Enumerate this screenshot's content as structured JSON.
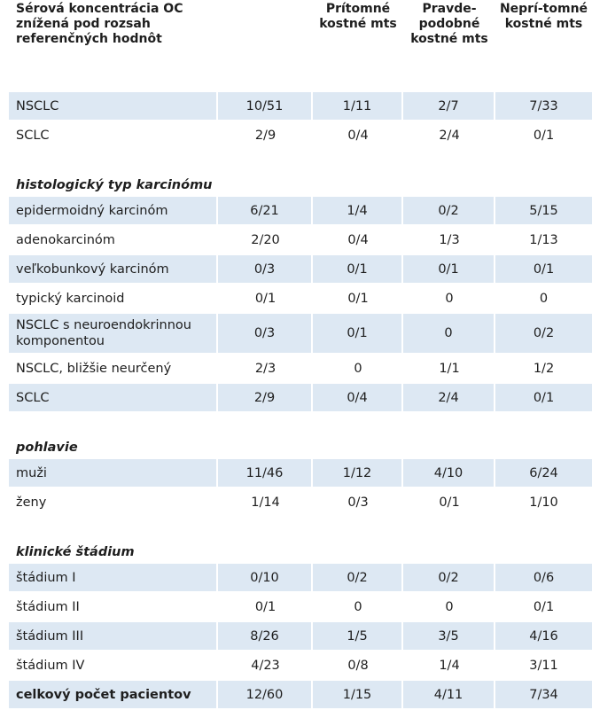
{
  "header": {
    "col0": "Sérová koncentrácia OC znížená pod rozsah referenčných hodnôt",
    "col1": "",
    "col2": "Prítomné kostné mts",
    "col3": "Pravde-podobné kostné mts",
    "col4": "Neprí-tomné kostné mts"
  },
  "sections": [
    {
      "title": "",
      "rows": [
        {
          "label": "NSCLC",
          "values": [
            "10/51",
            "1/11",
            "2/7",
            "7/33"
          ],
          "shaded": true
        },
        {
          "label": "SCLC",
          "values": [
            "2/9",
            "0/4",
            "2/4",
            "0/1"
          ],
          "shaded": false
        }
      ]
    },
    {
      "title": "histologický typ karcinómu",
      "rows": [
        {
          "label": "epidermoidný karcinóm",
          "values": [
            "6/21",
            "1/4",
            "0/2",
            "5/15"
          ],
          "shaded": true
        },
        {
          "label": "adenokarcinóm",
          "values": [
            "2/20",
            "0/4",
            "1/3",
            "1/13"
          ],
          "shaded": false
        },
        {
          "label": "veľkobunkový karcinóm",
          "values": [
            "0/3",
            "0/1",
            "0/1",
            "0/1"
          ],
          "shaded": true
        },
        {
          "label": "typický karcinoid",
          "values": [
            "0/1",
            "0/1",
            "0",
            "0"
          ],
          "shaded": false
        },
        {
          "label": "NSCLC s neuroendokrinnou komponentou",
          "values": [
            "0/3",
            "0/1",
            "0",
            "0/2"
          ],
          "shaded": true,
          "tall": true
        },
        {
          "label": "NSCLC, bližšie neurčený",
          "values": [
            "2/3",
            "0",
            "1/1",
            "1/2"
          ],
          "shaded": false
        },
        {
          "label": "SCLC",
          "values": [
            "2/9",
            "0/4",
            "2/4",
            "0/1"
          ],
          "shaded": true
        }
      ]
    },
    {
      "title": "pohlavie",
      "rows": [
        {
          "label": "muži",
          "values": [
            "11/46",
            "1/12",
            "4/10",
            "6/24"
          ],
          "shaded": true
        },
        {
          "label": "ženy",
          "values": [
            "1/14",
            "0/3",
            "0/1",
            "1/10"
          ],
          "shaded": false
        }
      ]
    },
    {
      "title": "klinické štádium",
      "rows": [
        {
          "label": "štádium I",
          "values": [
            "0/10",
            "0/2",
            "0/2",
            "0/6"
          ],
          "shaded": true
        },
        {
          "label": "štádium II",
          "values": [
            "0/1",
            "0",
            "0",
            "0/1"
          ],
          "shaded": false
        },
        {
          "label": "štádium III",
          "values": [
            "8/26",
            "1/5",
            "3/5",
            "4/16"
          ],
          "shaded": true
        },
        {
          "label": "štádium IV",
          "values": [
            "4/23",
            "0/8",
            "1/4",
            "3/11"
          ],
          "shaded": false
        },
        {
          "label": "celkový počet pacientov",
          "values": [
            "12/60",
            "1/15",
            "4/11",
            "7/34"
          ],
          "shaded": true,
          "bold": true
        }
      ]
    }
  ],
  "colors": {
    "shade": "#dde8f3",
    "text": "#1e1e1e"
  }
}
